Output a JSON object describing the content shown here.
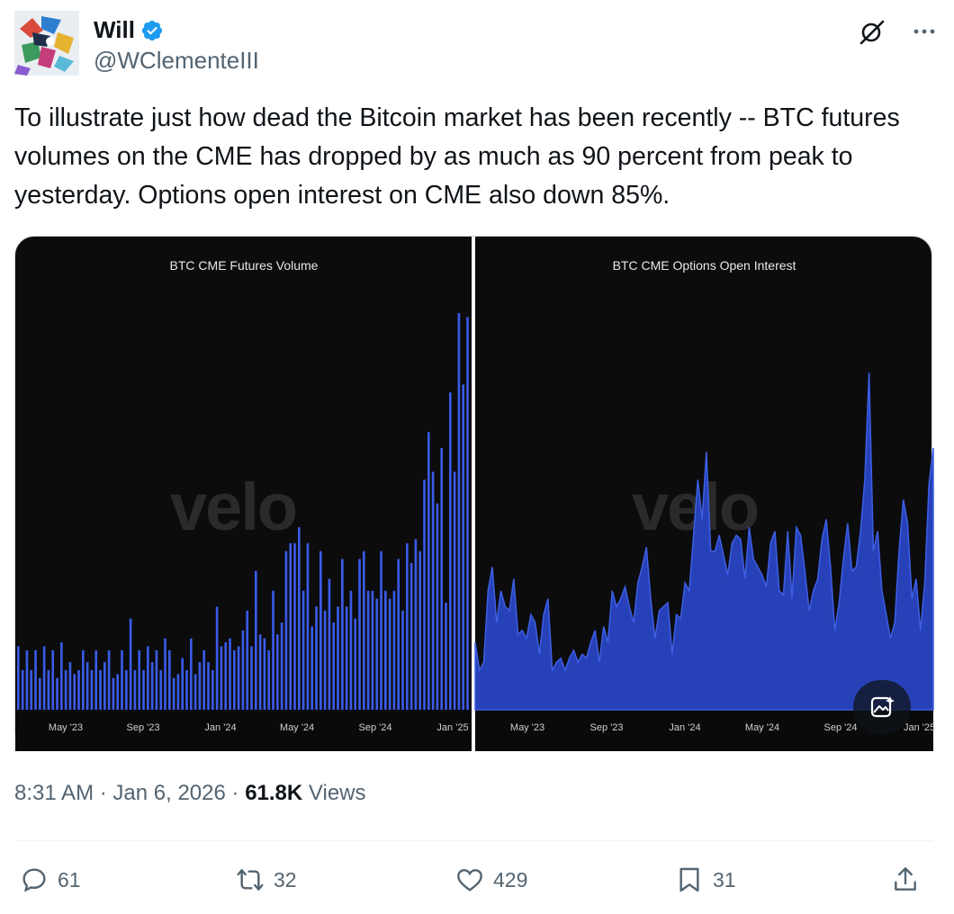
{
  "author": {
    "display_name": "Will",
    "handle": "@WClementeIII",
    "verified": true,
    "avatar_icon": "abstract-avatar-icon"
  },
  "header_icons": [
    "grok-icon",
    "more-icon"
  ],
  "tweet": {
    "text": "To illustrate just how dead the Bitcoin market has been recently -- BTC futures volumes on the CME has dropped by as much as 90 percent from peak to yesterday. Options open interest on CME also down 85%."
  },
  "media": {
    "watermark": "velo",
    "charts_button_icon": "image-sparkle-icon"
  },
  "chart_data": [
    {
      "type": "bar",
      "title": "BTC CME Futures Volume",
      "color": "#3a5be8",
      "x_ticks": [
        "May '23",
        "Sep '23",
        "Jan '24",
        "May '24",
        "Sep '24",
        "Jan '25"
      ],
      "ylim": [
        0,
        100
      ],
      "values": [
        16,
        10,
        15,
        10,
        15,
        8,
        16,
        10,
        15,
        8,
        17,
        10,
        12,
        9,
        10,
        15,
        12,
        10,
        15,
        10,
        12,
        15,
        8,
        9,
        15,
        10,
        23,
        10,
        15,
        10,
        16,
        12,
        15,
        10,
        18,
        15,
        8,
        9,
        13,
        10,
        18,
        9,
        12,
        15,
        12,
        10,
        26,
        16,
        17,
        18,
        15,
        16,
        20,
        25,
        16,
        35,
        19,
        18,
        15,
        30,
        19,
        22,
        40,
        42,
        42,
        46,
        30,
        42,
        21,
        26,
        40,
        25,
        33,
        22,
        26,
        38,
        26,
        30,
        23,
        38,
        40,
        30,
        30,
        28,
        40,
        30,
        28,
        30,
        38,
        25,
        42,
        37,
        43,
        40,
        58,
        70,
        60,
        52,
        66,
        27,
        80,
        60,
        100,
        82,
        99
      ]
    },
    {
      "type": "area",
      "title": "BTC CME Options Open Interest",
      "color": "#2741b8",
      "x_ticks": [
        "May '23",
        "Sep '23",
        "Jan '24",
        "May '24",
        "Sep '24",
        "Jan '25"
      ],
      "ylim": [
        0,
        100
      ],
      "values": [
        17,
        10,
        12,
        30,
        36,
        22,
        30,
        26,
        25,
        33,
        19,
        20,
        18,
        24,
        22,
        14,
        24,
        28,
        10,
        12,
        13,
        10,
        13,
        15,
        12,
        14,
        13,
        17,
        20,
        12,
        21,
        17,
        30,
        26,
        28,
        31,
        26,
        22,
        32,
        36,
        41,
        28,
        18,
        25,
        26,
        27,
        14,
        24,
        23,
        32,
        30,
        44,
        58,
        48,
        65,
        40,
        40,
        44,
        39,
        34,
        42,
        44,
        43,
        33,
        46,
        38,
        36,
        34,
        31,
        42,
        45,
        30,
        29,
        45,
        28,
        46,
        44,
        35,
        25,
        30,
        33,
        43,
        48,
        36,
        20,
        27,
        38,
        47,
        35,
        36,
        45,
        58,
        85,
        40,
        45,
        30,
        24,
        18,
        22,
        40,
        53,
        47,
        28,
        33,
        20,
        32,
        57,
        66
      ]
    }
  ],
  "meta": {
    "time": "8:31 AM",
    "date": "Jan 6, 2026",
    "views_count": "61.8K",
    "views_label": "Views"
  },
  "actions": {
    "replies": "61",
    "reposts": "32",
    "likes": "429",
    "bookmarks": "31"
  }
}
